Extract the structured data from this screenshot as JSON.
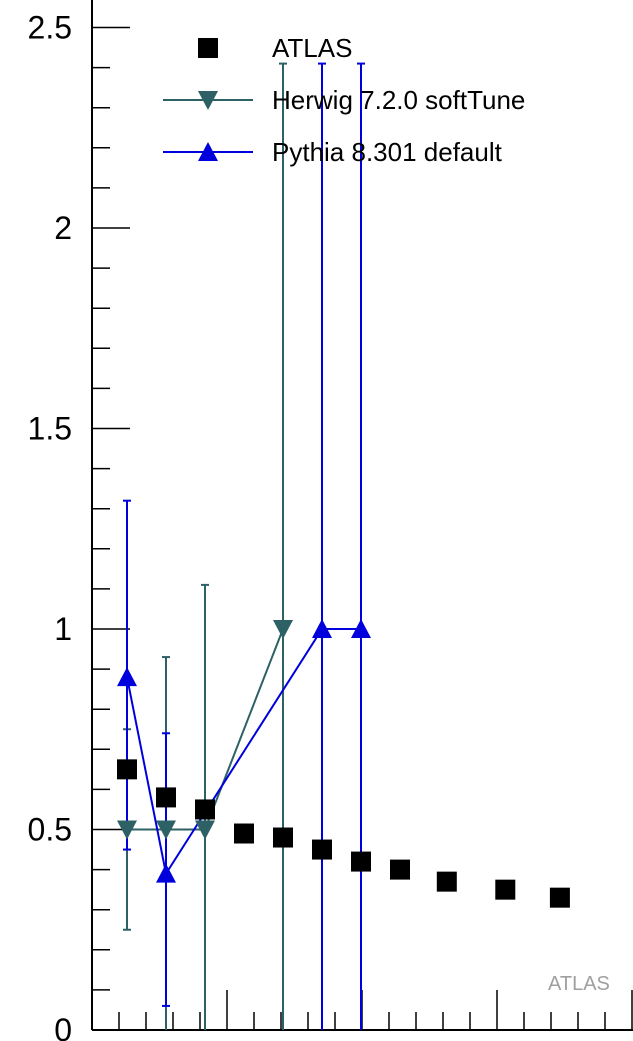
{
  "chart_data": {
    "type": "scatter",
    "ylim": [
      0,
      2.6
    ],
    "yticks": [
      {
        "value": 0,
        "label": "0"
      },
      {
        "value": 0.5,
        "label": "0.5"
      },
      {
        "value": 1,
        "label": "1"
      },
      {
        "value": 1.5,
        "label": "1.5"
      },
      {
        "value": 2,
        "label": "2"
      },
      {
        "value": 2.5,
        "label": "2.5"
      }
    ],
    "legend_position": "top-right",
    "watermark": "ATLAS",
    "series": [
      {
        "name": "ATLAS",
        "marker": "square",
        "color": "#000000",
        "connected": false,
        "x": [
          1,
          2,
          3,
          4,
          5,
          6,
          7,
          8,
          9.2,
          10.7,
          12.1
        ],
        "y": [
          0.65,
          0.58,
          0.55,
          0.49,
          0.48,
          0.45,
          0.42,
          0.4,
          0.37,
          0.35,
          0.33
        ]
      },
      {
        "name": "Herwig 7.2.0 softTune",
        "marker": "triangle-down",
        "color": "#2e6166",
        "connected": true,
        "x": [
          1,
          2,
          3,
          5
        ],
        "y": [
          0.5,
          0.5,
          0.5,
          1.0
        ],
        "yerr_lo": [
          0.25,
          0.5,
          0.5,
          1.0
        ],
        "yerr_hi": [
          0.25,
          0.43,
          0.61,
          1.41
        ]
      },
      {
        "name": "Pythia 8.301 default",
        "marker": "triangle-up",
        "color": "#0000dd",
        "connected": true,
        "x": [
          1,
          2,
          6,
          7
        ],
        "y": [
          0.88,
          0.39,
          1.0,
          1.0
        ],
        "yerr_lo": [
          0.43,
          0.33,
          1.0,
          1.0
        ],
        "yerr_hi": [
          0.44,
          0.35,
          1.41,
          1.41
        ]
      }
    ]
  }
}
